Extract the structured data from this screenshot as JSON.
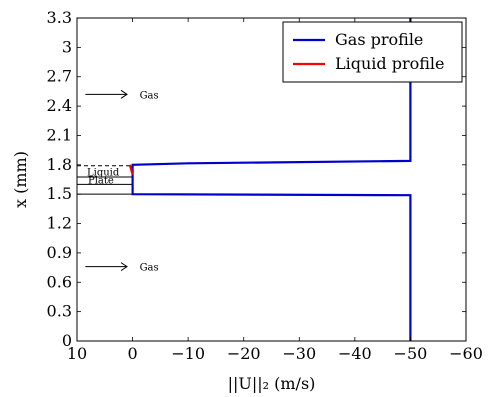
{
  "chart_data": {
    "type": "line",
    "xlabel": "||U||₂ (m/s)",
    "ylabel": "x (mm)",
    "xlim": [
      10,
      -60
    ],
    "ylim": [
      0,
      3.3
    ],
    "x_reversed": true,
    "x_ticks": [
      10,
      0,
      -10,
      -20,
      -30,
      -40,
      -50,
      -60
    ],
    "x_tick_labels": [
      "10",
      "0",
      "−10",
      "−20",
      "−30",
      "−40",
      "−50",
      "−60"
    ],
    "y_ticks": [
      0,
      0.3,
      0.6,
      0.9,
      1.2,
      1.5,
      1.8,
      2.1,
      2.4,
      2.7,
      3.0,
      3.3
    ],
    "y_tick_labels": [
      "0",
      "0.3",
      "0.6",
      "0.9",
      "1.2",
      "1.5",
      "1.8",
      "2.1",
      "2.4",
      "2.7",
      "3",
      "3.3"
    ],
    "grid": false,
    "legend_position": "top-right",
    "series": [
      {
        "name": "Gas profile",
        "color": "#0000cc",
        "x": [
          -50,
          -50,
          0,
          0,
          -10,
          -50,
          -50
        ],
        "y": [
          0,
          1.49,
          1.5,
          1.8,
          1.815,
          1.84,
          3.3
        ]
      },
      {
        "name": "Liquid profile",
        "color": "#ff0000",
        "x": [
          0,
          0.5
        ],
        "y": [
          1.7,
          1.8
        ]
      }
    ],
    "annotations": {
      "gas_top": {
        "text": "Gas",
        "x": 8,
        "y": 2.52
      },
      "gas_bottom": {
        "text": "Gas",
        "x": 8,
        "y": 0.76
      },
      "liquid": {
        "text": "Liquid",
        "x": 10,
        "y": 1.73
      },
      "plate": {
        "text": "Plate",
        "x": 10,
        "y": 1.6
      }
    }
  }
}
